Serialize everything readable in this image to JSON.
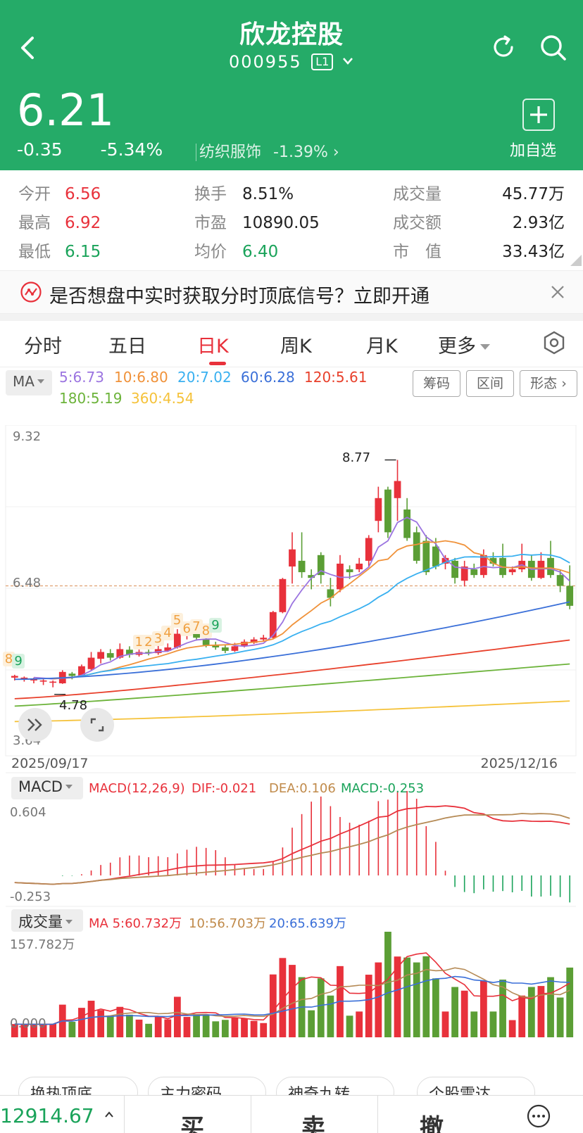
{
  "header": {
    "title": "欣龙控股",
    "code": "000955",
    "level_badge": "L1",
    "price": "6.21",
    "change": "-0.35",
    "change_pct": "-5.34%",
    "sector": "纺织服饰",
    "sector_change": "-1.39%",
    "add_label": "加自选",
    "colors": {
      "bg": "#25ab68",
      "fg": "#ffffff"
    }
  },
  "stats": {
    "open_label": "今开",
    "open": "6.56",
    "high_label": "最高",
    "high": "6.92",
    "low_label": "最低",
    "low": "6.15",
    "turnover_label": "换手",
    "turnover": "8.51%",
    "pe_label": "市盈",
    "pe": "10890.05",
    "avg_label": "均价",
    "avg": "6.40",
    "volume_label": "成交量",
    "volume": "45.77万",
    "amount_label": "成交额",
    "amount": "2.93亿",
    "mcap_label": "市　值",
    "mcap": "33.43亿"
  },
  "banner": {
    "text": "是否想盘中实时获取分时顶底信号？立即开通"
  },
  "tabs": [
    "分时",
    "五日",
    "日K",
    "周K",
    "月K",
    "更多"
  ],
  "active_tab": "日K",
  "ma_bar": {
    "select": "MA",
    "ma5": "5:6.73",
    "ma10": "10:6.80",
    "ma20": "20:7.02",
    "ma60": "60:6.28",
    "ma120": "120:5.61",
    "ma180": "180:5.19",
    "ma360": "360:4.54",
    "buttons": [
      "筹码",
      "区间",
      "形态"
    ],
    "colors": {
      "ma5": "#9b74e0",
      "ma10": "#f0923a",
      "ma20": "#39b0f0",
      "ma60": "#3a6fd8",
      "ma120": "#e8402b",
      "ma180": "#6cb33a",
      "ma360": "#f5c23a"
    }
  },
  "kline": {
    "axis_max": "9.32",
    "axis_mid": "6.48",
    "axis_min": "3.64",
    "high_marker": "8.77",
    "low_marker": "4.78",
    "date_start": "2025/09/17",
    "date_end": "2025/12/16",
    "seq_labels": [
      "8",
      "9",
      "1",
      "2",
      "3",
      "4",
      "5",
      "6",
      "7",
      "8",
      "9"
    ],
    "y_range": [
      3.64,
      9.32
    ],
    "reference_price": 6.56
  },
  "chart_data": [
    {
      "type": "candlestick",
      "title": "日K",
      "ylim": [
        3.64,
        9.32
      ],
      "x": [
        "2025/09/17",
        "2025/12/16"
      ],
      "candles": [
        [
          4.95,
          4.98,
          4.9,
          5.0
        ],
        [
          4.92,
          4.95,
          4.88,
          4.97
        ],
        [
          4.9,
          4.93,
          4.85,
          4.95
        ],
        [
          4.88,
          4.9,
          4.82,
          4.92
        ],
        [
          4.86,
          4.88,
          4.78,
          4.9
        ],
        [
          4.85,
          5.05,
          4.84,
          5.08
        ],
        [
          5.02,
          4.98,
          4.92,
          5.05
        ],
        [
          4.98,
          5.15,
          4.96,
          5.18
        ],
        [
          5.1,
          5.3,
          5.08,
          5.4
        ],
        [
          5.28,
          5.4,
          5.2,
          5.45
        ],
        [
          5.38,
          5.3,
          5.25,
          5.45
        ],
        [
          5.3,
          5.45,
          5.28,
          5.55
        ],
        [
          5.44,
          5.35,
          5.3,
          5.5
        ],
        [
          5.35,
          5.4,
          5.32,
          5.48
        ],
        [
          5.4,
          5.38,
          5.34,
          5.46
        ],
        [
          5.38,
          5.45,
          5.35,
          5.55
        ],
        [
          5.42,
          5.48,
          5.4,
          5.55
        ],
        [
          5.48,
          5.72,
          5.46,
          5.8
        ],
        [
          5.7,
          5.76,
          5.62,
          5.82
        ],
        [
          5.76,
          5.65,
          5.6,
          5.78
        ],
        [
          5.62,
          5.52,
          5.48,
          5.66
        ],
        [
          5.52,
          5.48,
          5.44,
          5.58
        ],
        [
          5.48,
          5.42,
          5.38,
          5.52
        ],
        [
          5.42,
          5.5,
          5.4,
          5.56
        ],
        [
          5.5,
          5.58,
          5.48,
          5.62
        ],
        [
          5.56,
          5.62,
          5.54,
          5.66
        ],
        [
          5.62,
          5.65,
          5.58,
          5.7
        ],
        [
          5.65,
          6.1,
          5.64,
          6.12
        ],
        [
          6.1,
          6.68,
          6.08,
          6.7
        ],
        [
          6.9,
          7.2,
          6.6,
          7.5
        ],
        [
          7.0,
          6.8,
          6.7,
          7.5
        ],
        [
          6.75,
          6.7,
          6.5,
          6.85
        ],
        [
          7.1,
          6.75,
          6.6,
          7.15
        ],
        [
          6.5,
          6.35,
          6.2,
          6.7
        ],
        [
          6.5,
          6.95,
          6.45,
          7.1
        ],
        [
          6.85,
          6.8,
          6.68,
          6.92
        ],
        [
          6.85,
          6.95,
          6.8,
          7.05
        ],
        [
          7.0,
          7.4,
          6.9,
          7.45
        ],
        [
          7.7,
          8.1,
          7.5,
          8.3
        ],
        [
          8.25,
          7.5,
          7.4,
          8.3
        ],
        [
          8.1,
          8.4,
          7.7,
          8.77
        ],
        [
          7.9,
          7.4,
          7.35,
          8.1
        ],
        [
          7.5,
          7.0,
          6.95,
          7.6
        ],
        [
          7.35,
          6.8,
          6.75,
          7.45
        ],
        [
          7.25,
          6.9,
          6.85,
          7.4
        ],
        [
          6.95,
          7.05,
          6.85,
          7.1
        ],
        [
          7.0,
          6.7,
          6.6,
          7.05
        ],
        [
          6.65,
          6.9,
          6.55,
          7.0
        ],
        [
          6.85,
          6.75,
          6.7,
          6.95
        ],
        [
          6.75,
          7.1,
          6.7,
          7.2
        ],
        [
          7.05,
          6.95,
          6.9,
          7.15
        ],
        [
          7.05,
          6.75,
          6.7,
          7.3
        ],
        [
          6.8,
          6.85,
          6.75,
          6.9
        ],
        [
          6.85,
          7.0,
          6.8,
          7.3
        ],
        [
          7.0,
          6.7,
          6.65,
          7.1
        ],
        [
          6.7,
          7.0,
          6.68,
          7.15
        ],
        [
          7.05,
          6.75,
          6.7,
          7.35
        ],
        [
          6.75,
          6.56,
          6.45,
          6.85
        ],
        [
          6.56,
          6.21,
          6.15,
          6.92
        ]
      ]
    },
    {
      "type": "bar",
      "title": "MACD(12,26,9)",
      "ylim": [
        -0.253,
        0.604
      ],
      "dif": "-0.021",
      "dea": "0.106",
      "macd": "-0.253"
    },
    {
      "type": "bar",
      "title": "成交量",
      "max_label": "157.782万",
      "ma5": "5:60.732万",
      "ma10": "10:56.703万",
      "ma20": "20:65.639万"
    }
  ],
  "macd_panel": {
    "select": "MACD",
    "params": "MACD(12,26,9)",
    "dif": "DIF:-0.021",
    "dea": "DEA:0.106",
    "macd": "MACD:-0.253",
    "axis_max": "0.604",
    "axis_min": "-0.253"
  },
  "volume_panel": {
    "select": "成交量",
    "ma5": "MA 5:60.732万",
    "ma10": "10:56.703万",
    "ma20": "20:65.639万",
    "axis_max": "157.782万",
    "axis_min": "0.000"
  },
  "chips": [
    "换热顶底",
    "主力密码",
    "神奇九转",
    "个股雷达"
  ],
  "bottom": {
    "index_value": "12914.67",
    "buy": "买",
    "sell": "卖",
    "cancel": "撤"
  }
}
